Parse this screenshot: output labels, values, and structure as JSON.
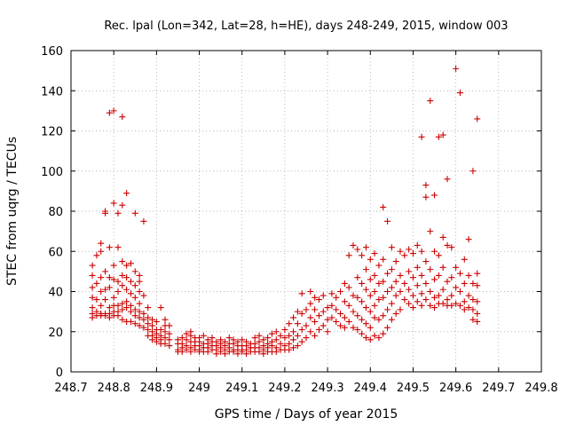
{
  "chart_data": {
    "type": "scatter",
    "title": "Rec. lpal (Lon=342, Lat=28, h=HE), days 248-249, 2015, window 003",
    "xlabel": "GPS time / Days of year 2015",
    "ylabel": "STEC from uqrg / TECUs",
    "xlim": [
      248.7,
      249.8
    ],
    "ylim": [
      0,
      160
    ],
    "x_ticks": [
      248.7,
      248.8,
      248.9,
      249.0,
      249.1,
      249.2,
      249.3,
      249.4,
      249.5,
      249.6,
      249.7,
      249.8
    ],
    "x_tick_labels": [
      "248.7",
      "248.8",
      "248.9",
      "249",
      "249.1",
      "249.2",
      "249.3",
      "249.4",
      "249.5",
      "249.6",
      "249.7",
      "249.8"
    ],
    "y_ticks": [
      0,
      20,
      40,
      60,
      80,
      100,
      120,
      140,
      160
    ],
    "y_tick_labels": [
      "0",
      "20",
      "40",
      "60",
      "80",
      "100",
      "120",
      "140",
      "160"
    ],
    "grid": true,
    "marker": "plus",
    "color": "#cc0000",
    "points": [
      [
        248.75,
        53
      ],
      [
        248.75,
        48
      ],
      [
        248.75,
        42
      ],
      [
        248.75,
        37
      ],
      [
        248.75,
        32
      ],
      [
        248.75,
        29
      ],
      [
        248.75,
        27
      ],
      [
        248.76,
        58
      ],
      [
        248.76,
        44
      ],
      [
        248.76,
        36
      ],
      [
        248.76,
        30
      ],
      [
        248.76,
        28
      ],
      [
        248.77,
        64
      ],
      [
        248.77,
        60
      ],
      [
        248.77,
        47
      ],
      [
        248.77,
        40
      ],
      [
        248.77,
        33
      ],
      [
        248.77,
        29
      ],
      [
        248.77,
        28
      ],
      [
        248.78,
        80
      ],
      [
        248.78,
        79
      ],
      [
        248.78,
        50
      ],
      [
        248.78,
        41
      ],
      [
        248.78,
        36
      ],
      [
        248.78,
        29
      ],
      [
        248.78,
        28
      ],
      [
        248.79,
        129
      ],
      [
        248.79,
        62
      ],
      [
        248.79,
        47
      ],
      [
        248.79,
        42
      ],
      [
        248.79,
        32
      ],
      [
        248.79,
        29
      ],
      [
        248.79,
        27
      ],
      [
        248.8,
        130
      ],
      [
        248.8,
        84
      ],
      [
        248.8,
        53
      ],
      [
        248.8,
        46
      ],
      [
        248.8,
        37
      ],
      [
        248.8,
        33
      ],
      [
        248.8,
        30
      ],
      [
        248.8,
        28
      ],
      [
        248.81,
        79
      ],
      [
        248.81,
        62
      ],
      [
        248.81,
        45
      ],
      [
        248.81,
        40
      ],
      [
        248.81,
        33
      ],
      [
        248.81,
        30
      ],
      [
        248.81,
        28
      ],
      [
        248.82,
        127
      ],
      [
        248.82,
        83
      ],
      [
        248.82,
        55
      ],
      [
        248.82,
        48
      ],
      [
        248.82,
        43
      ],
      [
        248.82,
        34
      ],
      [
        248.82,
        31
      ],
      [
        248.82,
        26
      ],
      [
        248.83,
        89
      ],
      [
        248.83,
        53
      ],
      [
        248.83,
        47
      ],
      [
        248.83,
        41
      ],
      [
        248.83,
        35
      ],
      [
        248.83,
        32
      ],
      [
        248.83,
        25
      ],
      [
        248.84,
        54
      ],
      [
        248.84,
        45
      ],
      [
        248.84,
        39
      ],
      [
        248.84,
        33
      ],
      [
        248.84,
        30
      ],
      [
        248.84,
        25
      ],
      [
        248.85,
        79
      ],
      [
        248.85,
        50
      ],
      [
        248.85,
        43
      ],
      [
        248.85,
        37
      ],
      [
        248.85,
        31
      ],
      [
        248.85,
        28
      ],
      [
        248.85,
        24
      ],
      [
        248.86,
        48
      ],
      [
        248.86,
        45
      ],
      [
        248.86,
        40
      ],
      [
        248.86,
        34
      ],
      [
        248.86,
        30
      ],
      [
        248.86,
        27
      ],
      [
        248.86,
        23
      ],
      [
        248.87,
        75
      ],
      [
        248.87,
        38
      ],
      [
        248.87,
        29
      ],
      [
        248.87,
        26
      ],
      [
        248.87,
        22
      ],
      [
        248.88,
        32
      ],
      [
        248.88,
        27
      ],
      [
        248.88,
        24
      ],
      [
        248.88,
        21
      ],
      [
        248.88,
        18
      ],
      [
        248.89,
        26
      ],
      [
        248.89,
        23
      ],
      [
        248.89,
        20
      ],
      [
        248.89,
        18
      ],
      [
        248.89,
        16
      ],
      [
        248.9,
        25
      ],
      [
        248.9,
        21
      ],
      [
        248.9,
        19
      ],
      [
        248.9,
        17
      ],
      [
        248.9,
        15
      ],
      [
        248.91,
        32
      ],
      [
        248.91,
        21
      ],
      [
        248.91,
        18
      ],
      [
        248.91,
        16
      ],
      [
        248.91,
        14
      ],
      [
        248.92,
        26
      ],
      [
        248.92,
        23
      ],
      [
        248.92,
        20
      ],
      [
        248.92,
        17
      ],
      [
        248.92,
        14
      ],
      [
        248.93,
        23
      ],
      [
        248.93,
        19
      ],
      [
        248.93,
        16
      ],
      [
        248.93,
        13
      ],
      [
        248.95,
        16
      ],
      [
        248.95,
        14
      ],
      [
        248.95,
        11
      ],
      [
        248.95,
        10
      ],
      [
        248.96,
        17
      ],
      [
        248.96,
        14
      ],
      [
        248.96,
        12
      ],
      [
        248.96,
        10
      ],
      [
        248.97,
        19
      ],
      [
        248.97,
        16
      ],
      [
        248.97,
        13
      ],
      [
        248.97,
        11
      ],
      [
        248.98,
        20
      ],
      [
        248.98,
        18
      ],
      [
        248.98,
        15
      ],
      [
        248.98,
        12
      ],
      [
        248.98,
        10
      ],
      [
        248.99,
        17
      ],
      [
        248.99,
        15
      ],
      [
        248.99,
        13
      ],
      [
        248.99,
        11
      ],
      [
        249.0,
        17
      ],
      [
        249.0,
        15
      ],
      [
        249.0,
        13
      ],
      [
        249.0,
        11
      ],
      [
        249.0,
        10
      ],
      [
        249.01,
        18
      ],
      [
        249.01,
        14
      ],
      [
        249.01,
        12
      ],
      [
        249.01,
        10
      ],
      [
        249.02,
        16
      ],
      [
        249.02,
        14
      ],
      [
        249.02,
        12
      ],
      [
        249.02,
        10
      ],
      [
        249.03,
        17
      ],
      [
        249.03,
        15
      ],
      [
        249.03,
        13
      ],
      [
        249.03,
        11
      ],
      [
        249.04,
        15
      ],
      [
        249.04,
        13
      ],
      [
        249.04,
        11
      ],
      [
        249.04,
        9
      ],
      [
        249.05,
        16
      ],
      [
        249.05,
        14
      ],
      [
        249.05,
        12
      ],
      [
        249.05,
        10
      ],
      [
        249.06,
        15
      ],
      [
        249.06,
        13
      ],
      [
        249.06,
        11
      ],
      [
        249.06,
        9
      ],
      [
        249.07,
        17
      ],
      [
        249.07,
        14
      ],
      [
        249.07,
        12
      ],
      [
        249.07,
        10
      ],
      [
        249.08,
        16
      ],
      [
        249.08,
        14
      ],
      [
        249.08,
        11
      ],
      [
        249.08,
        10
      ],
      [
        249.09,
        15
      ],
      [
        249.09,
        13
      ],
      [
        249.09,
        11
      ],
      [
        249.09,
        9
      ],
      [
        249.1,
        16
      ],
      [
        249.1,
        13
      ],
      [
        249.1,
        11
      ],
      [
        249.1,
        10
      ],
      [
        249.11,
        15
      ],
      [
        249.11,
        13
      ],
      [
        249.11,
        11
      ],
      [
        249.11,
        9
      ],
      [
        249.12,
        14
      ],
      [
        249.12,
        12
      ],
      [
        249.12,
        10
      ],
      [
        249.13,
        17
      ],
      [
        249.13,
        14
      ],
      [
        249.13,
        12
      ],
      [
        249.13,
        10
      ],
      [
        249.14,
        18
      ],
      [
        249.14,
        15
      ],
      [
        249.14,
        12
      ],
      [
        249.14,
        10
      ],
      [
        249.15,
        16
      ],
      [
        249.15,
        13
      ],
      [
        249.15,
        11
      ],
      [
        249.15,
        9
      ],
      [
        249.16,
        17
      ],
      [
        249.16,
        14
      ],
      [
        249.16,
        12
      ],
      [
        249.16,
        10
      ],
      [
        249.17,
        19
      ],
      [
        249.17,
        15
      ],
      [
        249.17,
        13
      ],
      [
        249.17,
        10
      ],
      [
        249.18,
        20
      ],
      [
        249.18,
        16
      ],
      [
        249.18,
        12
      ],
      [
        249.18,
        10
      ],
      [
        249.19,
        18
      ],
      [
        249.19,
        14
      ],
      [
        249.19,
        11
      ],
      [
        249.2,
        21
      ],
      [
        249.2,
        17
      ],
      [
        249.2,
        13
      ],
      [
        249.2,
        11
      ],
      [
        249.21,
        24
      ],
      [
        249.21,
        18
      ],
      [
        249.21,
        14
      ],
      [
        249.21,
        11
      ],
      [
        249.22,
        27
      ],
      [
        249.22,
        20
      ],
      [
        249.22,
        16
      ],
      [
        249.22,
        12
      ],
      [
        249.23,
        30
      ],
      [
        249.23,
        24
      ],
      [
        249.23,
        18
      ],
      [
        249.23,
        13
      ],
      [
        249.24,
        39
      ],
      [
        249.24,
        29
      ],
      [
        249.24,
        21
      ],
      [
        249.24,
        15
      ],
      [
        249.25,
        31
      ],
      [
        249.25,
        23
      ],
      [
        249.25,
        17
      ],
      [
        249.26,
        40
      ],
      [
        249.26,
        34
      ],
      [
        249.26,
        27
      ],
      [
        249.26,
        20
      ],
      [
        249.27,
        37
      ],
      [
        249.27,
        31
      ],
      [
        249.27,
        25
      ],
      [
        249.27,
        18
      ],
      [
        249.28,
        36
      ],
      [
        249.28,
        28
      ],
      [
        249.28,
        21
      ],
      [
        249.29,
        38
      ],
      [
        249.29,
        30
      ],
      [
        249.29,
        23
      ],
      [
        249.3,
        32
      ],
      [
        249.3,
        26
      ],
      [
        249.3,
        20
      ],
      [
        249.31,
        39
      ],
      [
        249.31,
        33
      ],
      [
        249.31,
        27
      ],
      [
        249.32,
        37
      ],
      [
        249.32,
        31
      ],
      [
        249.32,
        25
      ],
      [
        249.33,
        40
      ],
      [
        249.33,
        29
      ],
      [
        249.33,
        23
      ],
      [
        249.34,
        44
      ],
      [
        249.34,
        35
      ],
      [
        249.34,
        27
      ],
      [
        249.34,
        22
      ],
      [
        249.35,
        58
      ],
      [
        249.35,
        42
      ],
      [
        249.35,
        33
      ],
      [
        249.35,
        25
      ],
      [
        249.36,
        63
      ],
      [
        249.36,
        38
      ],
      [
        249.36,
        30
      ],
      [
        249.36,
        22
      ],
      [
        249.37,
        61
      ],
      [
        249.37,
        47
      ],
      [
        249.37,
        37
      ],
      [
        249.37,
        28
      ],
      [
        249.37,
        21
      ],
      [
        249.38,
        58
      ],
      [
        249.38,
        44
      ],
      [
        249.38,
        35
      ],
      [
        249.38,
        26
      ],
      [
        249.38,
        19
      ],
      [
        249.39,
        62
      ],
      [
        249.39,
        51
      ],
      [
        249.39,
        41
      ],
      [
        249.39,
        32
      ],
      [
        249.39,
        24
      ],
      [
        249.39,
        17
      ],
      [
        249.4,
        56
      ],
      [
        249.4,
        46
      ],
      [
        249.4,
        38
      ],
      [
        249.4,
        30
      ],
      [
        249.4,
        22
      ],
      [
        249.4,
        16
      ],
      [
        249.41,
        59
      ],
      [
        249.41,
        48
      ],
      [
        249.41,
        40
      ],
      [
        249.41,
        33
      ],
      [
        249.41,
        27
      ],
      [
        249.41,
        18
      ],
      [
        249.42,
        53
      ],
      [
        249.42,
        44
      ],
      [
        249.42,
        36
      ],
      [
        249.42,
        26
      ],
      [
        249.42,
        17
      ],
      [
        249.43,
        82
      ],
      [
        249.43,
        56
      ],
      [
        249.43,
        45
      ],
      [
        249.43,
        37
      ],
      [
        249.43,
        28
      ],
      [
        249.43,
        19
      ],
      [
        249.44,
        75
      ],
      [
        249.44,
        49
      ],
      [
        249.44,
        40
      ],
      [
        249.44,
        31
      ],
      [
        249.44,
        22
      ],
      [
        249.45,
        62
      ],
      [
        249.45,
        51
      ],
      [
        249.45,
        42
      ],
      [
        249.45,
        34
      ],
      [
        249.45,
        26
      ],
      [
        249.46,
        55
      ],
      [
        249.46,
        45
      ],
      [
        249.46,
        38
      ],
      [
        249.46,
        29
      ],
      [
        249.47,
        60
      ],
      [
        249.47,
        48
      ],
      [
        249.47,
        40
      ],
      [
        249.47,
        31
      ],
      [
        249.48,
        58
      ],
      [
        249.48,
        44
      ],
      [
        249.48,
        36
      ],
      [
        249.49,
        61
      ],
      [
        249.49,
        50
      ],
      [
        249.49,
        41
      ],
      [
        249.49,
        34
      ],
      [
        249.5,
        59
      ],
      [
        249.5,
        47
      ],
      [
        249.5,
        38
      ],
      [
        249.5,
        32
      ],
      [
        249.51,
        63
      ],
      [
        249.51,
        52
      ],
      [
        249.51,
        43
      ],
      [
        249.51,
        35
      ],
      [
        249.52,
        117
      ],
      [
        249.52,
        60
      ],
      [
        249.52,
        48
      ],
      [
        249.52,
        39
      ],
      [
        249.52,
        33
      ],
      [
        249.53,
        93
      ],
      [
        249.53,
        87
      ],
      [
        249.53,
        55
      ],
      [
        249.53,
        44
      ],
      [
        249.53,
        36
      ],
      [
        249.54,
        135
      ],
      [
        249.54,
        70
      ],
      [
        249.54,
        51
      ],
      [
        249.54,
        40
      ],
      [
        249.54,
        33
      ],
      [
        249.55,
        88
      ],
      [
        249.55,
        60
      ],
      [
        249.55,
        46
      ],
      [
        249.55,
        37
      ],
      [
        249.55,
        32
      ],
      [
        249.56,
        117
      ],
      [
        249.56,
        58
      ],
      [
        249.56,
        48
      ],
      [
        249.56,
        38
      ],
      [
        249.56,
        34
      ],
      [
        249.57,
        118
      ],
      [
        249.57,
        67
      ],
      [
        249.57,
        52
      ],
      [
        249.57,
        41
      ],
      [
        249.57,
        34
      ],
      [
        249.58,
        96
      ],
      [
        249.58,
        63
      ],
      [
        249.58,
        45
      ],
      [
        249.58,
        36
      ],
      [
        249.58,
        33
      ],
      [
        249.59,
        62
      ],
      [
        249.59,
        47
      ],
      [
        249.59,
        38
      ],
      [
        249.59,
        33
      ],
      [
        249.6,
        151
      ],
      [
        249.6,
        52
      ],
      [
        249.6,
        42
      ],
      [
        249.6,
        34
      ],
      [
        249.61,
        139
      ],
      [
        249.61,
        49
      ],
      [
        249.61,
        40
      ],
      [
        249.61,
        33
      ],
      [
        249.62,
        56
      ],
      [
        249.62,
        44
      ],
      [
        249.62,
        35
      ],
      [
        249.62,
        31
      ],
      [
        249.63,
        66
      ],
      [
        249.63,
        48
      ],
      [
        249.63,
        38
      ],
      [
        249.63,
        32
      ],
      [
        249.64,
        100
      ],
      [
        249.64,
        44
      ],
      [
        249.64,
        36
      ],
      [
        249.64,
        31
      ],
      [
        249.64,
        26
      ],
      [
        249.65,
        126
      ],
      [
        249.65,
        49
      ],
      [
        249.65,
        43
      ],
      [
        249.65,
        35
      ],
      [
        249.65,
        29
      ],
      [
        249.65,
        25
      ]
    ]
  }
}
